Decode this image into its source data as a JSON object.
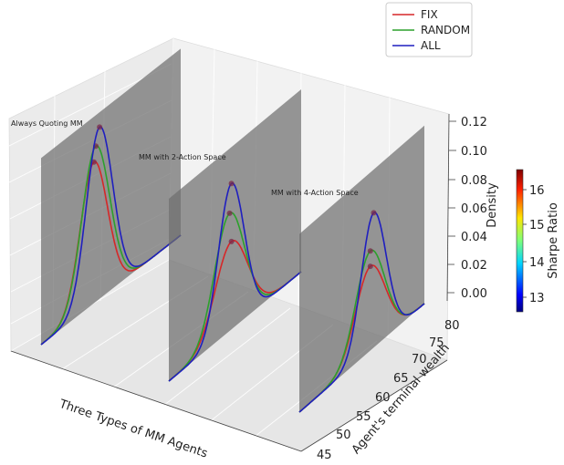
{
  "chart_data": {
    "type": "line",
    "projection": "3d",
    "panels": [
      "Always Quoting MM",
      "MM with 2-Action Space",
      "MM with 4-Action Space"
    ],
    "xlabel": "Three Types of MM Agents",
    "ylabel": "Agent's terminal wealth",
    "zlabel": "Density",
    "ylim": [
      44,
      81
    ],
    "zlim": [
      -0.005,
      0.125
    ],
    "yticks": [
      45,
      50,
      55,
      60,
      65,
      70,
      75,
      80
    ],
    "zticks": [
      "0.00",
      "0.02",
      "0.04",
      "0.06",
      "0.08",
      "0.10",
      "0.12"
    ],
    "legend": {
      "placement": "top-right",
      "entries": [
        {
          "name": "FIX",
          "color": "#d62728"
        },
        {
          "name": "RANDOM",
          "color": "#2ca02c"
        },
        {
          "name": "ALL",
          "color": "#1f1fbf"
        }
      ]
    },
    "colorbar": {
      "label": "Sharpe Ratio",
      "ticks": [
        "13",
        "14",
        "15",
        "16"
      ],
      "range": [
        12.5,
        16.6
      ]
    },
    "series_params": [
      [
        {
          "name": "FIX",
          "peak_wealth": 58.0,
          "peak_density": 0.088,
          "width": 3.6
        },
        {
          "name": "RANDOM",
          "peak_wealth": 58.5,
          "peak_density": 0.097,
          "width": 3.7
        },
        {
          "name": "ALL",
          "peak_wealth": 59.5,
          "peak_density": 0.107,
          "width": 3.5
        }
      ],
      [
        {
          "name": "FIX",
          "peak_wealth": 61.5,
          "peak_density": 0.056,
          "width": 4.5
        },
        {
          "name": "RANDOM",
          "peak_wealth": 61.0,
          "peak_density": 0.075,
          "width": 4.2
        },
        {
          "name": "ALL",
          "peak_wealth": 61.5,
          "peak_density": 0.093,
          "width": 3.6
        }
      ],
      [
        {
          "name": "FIX",
          "peak_wealth": 65.0,
          "peak_density": 0.055,
          "width": 4.4
        },
        {
          "name": "RANDOM",
          "peak_wealth": 65.0,
          "peak_density": 0.065,
          "width": 4.3
        },
        {
          "name": "ALL",
          "peak_wealth": 66.0,
          "peak_density": 0.088,
          "width": 3.7
        }
      ]
    ]
  }
}
